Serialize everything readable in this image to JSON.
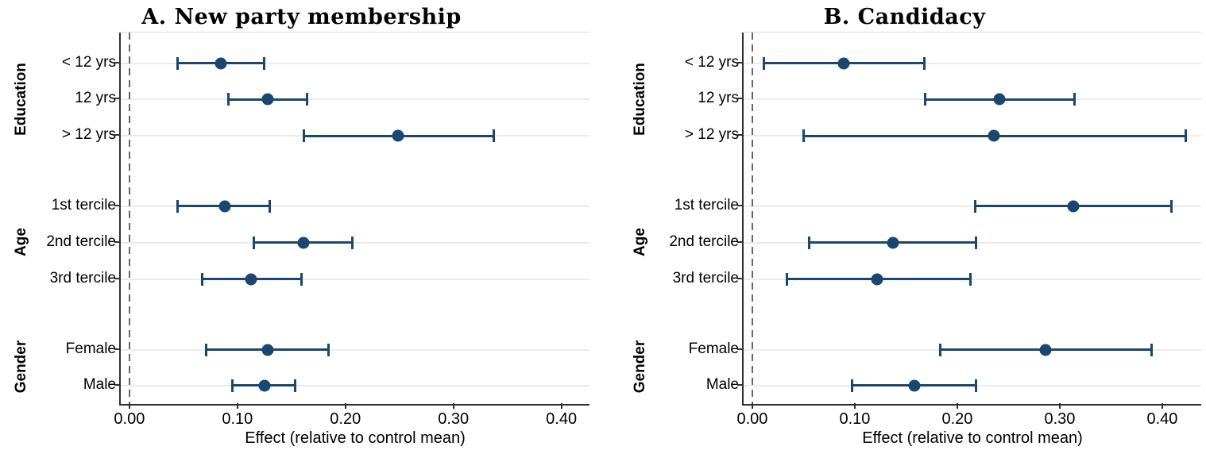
{
  "figure": {
    "background": "#ffffff"
  },
  "colors": {
    "marker": "#1a476f",
    "gridline": "#ebebeb",
    "zero_line": "#666666",
    "axis_line": "#303030",
    "text": "#000000"
  },
  "chart_data": [
    {
      "type": "scatter",
      "variant": "coefficient-plot-95ci",
      "title": "A. New party membership",
      "xlabel": "Effect (relative to control mean)",
      "x_tick_labels": [
        "0.00",
        "0.10",
        "0.20",
        "0.30",
        "0.40"
      ],
      "x_tick_values": [
        0,
        0.1,
        0.2,
        0.3,
        0.4
      ],
      "xlim": [
        -0.008,
        0.426
      ],
      "zero_line_x": 0,
      "grid": true,
      "groups": [
        {
          "label": "Education",
          "categories": [
            "< 12 yrs",
            "12 yrs",
            "> 12 yrs"
          ]
        },
        {
          "label": "Age",
          "categories": [
            "1st tercile",
            "2nd tercile",
            "3rd tercile"
          ]
        },
        {
          "label": "Gender",
          "categories": [
            "Female",
            "Male"
          ]
        }
      ],
      "series": [
        {
          "category": "< 12 yrs",
          "group": "Education",
          "estimate": 0.085,
          "ci_low": 0.044,
          "ci_high": 0.125
        },
        {
          "category": "12 yrs",
          "group": "Education",
          "estimate": 0.128,
          "ci_low": 0.091,
          "ci_high": 0.165
        },
        {
          "category": "> 12 yrs",
          "group": "Education",
          "estimate": 0.249,
          "ci_low": 0.161,
          "ci_high": 0.338
        },
        {
          "category": "1st tercile",
          "group": "Age",
          "estimate": 0.088,
          "ci_low": 0.044,
          "ci_high": 0.13
        },
        {
          "category": "2nd tercile",
          "group": "Age",
          "estimate": 0.161,
          "ci_low": 0.115,
          "ci_high": 0.207
        },
        {
          "category": "3rd tercile",
          "group": "Age",
          "estimate": 0.113,
          "ci_low": 0.067,
          "ci_high": 0.16
        },
        {
          "category": "Female",
          "group": "Gender",
          "estimate": 0.128,
          "ci_low": 0.071,
          "ci_high": 0.185
        },
        {
          "category": "Male",
          "group": "Gender",
          "estimate": 0.125,
          "ci_low": 0.095,
          "ci_high": 0.154
        }
      ]
    },
    {
      "type": "scatter",
      "variant": "coefficient-plot-95ci",
      "title": "B. Candidacy",
      "xlabel": "Effect (relative to control mean)",
      "x_tick_labels": [
        "0.00",
        "0.10",
        "0.20",
        "0.30",
        "0.40"
      ],
      "x_tick_values": [
        0,
        0.1,
        0.2,
        0.3,
        0.4
      ],
      "xlim": [
        -0.0085,
        0.438
      ],
      "zero_line_x": 0,
      "grid": true,
      "groups": [
        {
          "label": "Education",
          "categories": [
            "< 12 yrs",
            "12 yrs",
            "> 12 yrs"
          ]
        },
        {
          "label": "Age",
          "categories": [
            "1st tercile",
            "2nd tercile",
            "3rd tercile"
          ]
        },
        {
          "label": "Gender",
          "categories": [
            "Female",
            "Male"
          ]
        }
      ],
      "series": [
        {
          "category": "< 12 yrs",
          "group": "Education",
          "estimate": 0.089,
          "ci_low": 0.011,
          "ci_high": 0.168
        },
        {
          "category": "12 yrs",
          "group": "Education",
          "estimate": 0.241,
          "ci_low": 0.168,
          "ci_high": 0.315
        },
        {
          "category": "> 12 yrs",
          "group": "Education",
          "estimate": 0.236,
          "ci_low": 0.05,
          "ci_high": 0.423
        },
        {
          "category": "1st tercile",
          "group": "Age",
          "estimate": 0.313,
          "ci_low": 0.217,
          "ci_high": 0.409
        },
        {
          "category": "2nd tercile",
          "group": "Age",
          "estimate": 0.137,
          "ci_low": 0.055,
          "ci_high": 0.219
        },
        {
          "category": "3rd tercile",
          "group": "Age",
          "estimate": 0.122,
          "ci_low": 0.033,
          "ci_high": 0.213
        },
        {
          "category": "Female",
          "group": "Gender",
          "estimate": 0.286,
          "ci_low": 0.183,
          "ci_high": 0.39
        },
        {
          "category": "Male",
          "group": "Gender",
          "estimate": 0.158,
          "ci_low": 0.097,
          "ci_high": 0.219
        }
      ]
    }
  ]
}
